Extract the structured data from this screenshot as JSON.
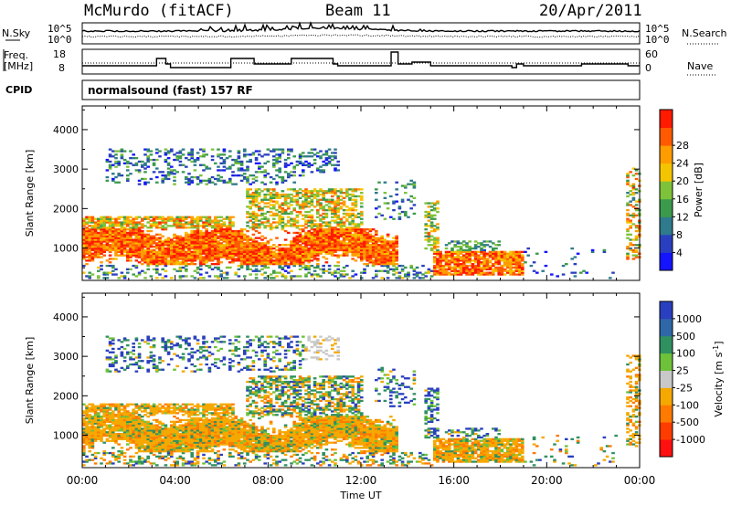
{
  "header": {
    "station": "McMurdo (fitACF)",
    "beam": "Beam 11",
    "date": "20/Apr/2011"
  },
  "strip_panels": {
    "nsky_label": "N.Sky",
    "nsearch_label": "N.Search",
    "noise_tick_high": "10^5",
    "noise_tick_low": "10^0",
    "freq_label_1": "Freq.",
    "freq_label_2": "[MHz]",
    "freq_ticks": [
      "18",
      "8"
    ],
    "nave_label": "Nave",
    "nave_ticks": [
      "60",
      "0"
    ],
    "cpid_label": "CPID",
    "cpid_text": "normalsound (fast) 157 RF"
  },
  "chart_data": [
    {
      "type": "heatmap",
      "name": "power",
      "ylabel": "Slant Range [km]",
      "xlabel": "",
      "y_ticks": [
        1000,
        2000,
        3000,
        4000
      ],
      "ylim": [
        180,
        4600
      ],
      "xlim_hours": [
        0,
        24
      ],
      "colorbar": {
        "label": "Power [dB]",
        "tick_labels": [
          "4",
          "8",
          "12",
          "16",
          "20",
          "24",
          "28"
        ],
        "colors": [
          "#1414ff",
          "#2a3fbf",
          "#2f7a8c",
          "#3c9a4c",
          "#7ec23a",
          "#f5c400",
          "#ff9c00",
          "#ff5a00",
          "#ff1a00"
        ]
      }
    },
    {
      "type": "heatmap",
      "name": "velocity",
      "ylabel": "Slant Range [km]",
      "xlabel": "Time UT",
      "y_ticks": [
        1000,
        2000,
        3000,
        4000
      ],
      "ylim": [
        180,
        4600
      ],
      "xlim_hours": [
        0,
        24
      ],
      "x_tick_labels": [
        "00:00",
        "04:00",
        "08:00",
        "12:00",
        "16:00",
        "20:00",
        "00:00"
      ],
      "colorbar": {
        "label": "Velocity [m s",
        "label_sup": "-1",
        "label_end": "]",
        "tick_labels": [
          "1000",
          "500",
          "100",
          "25",
          "-25",
          "-100",
          "-500",
          "-1000"
        ],
        "colors": [
          "#2a3fbf",
          "#2f67a8",
          "#2f9060",
          "#6ec23a",
          "#c8c8c8",
          "#f5a800",
          "#ff7a00",
          "#ff3c00",
          "#ff1010"
        ]
      }
    }
  ]
}
